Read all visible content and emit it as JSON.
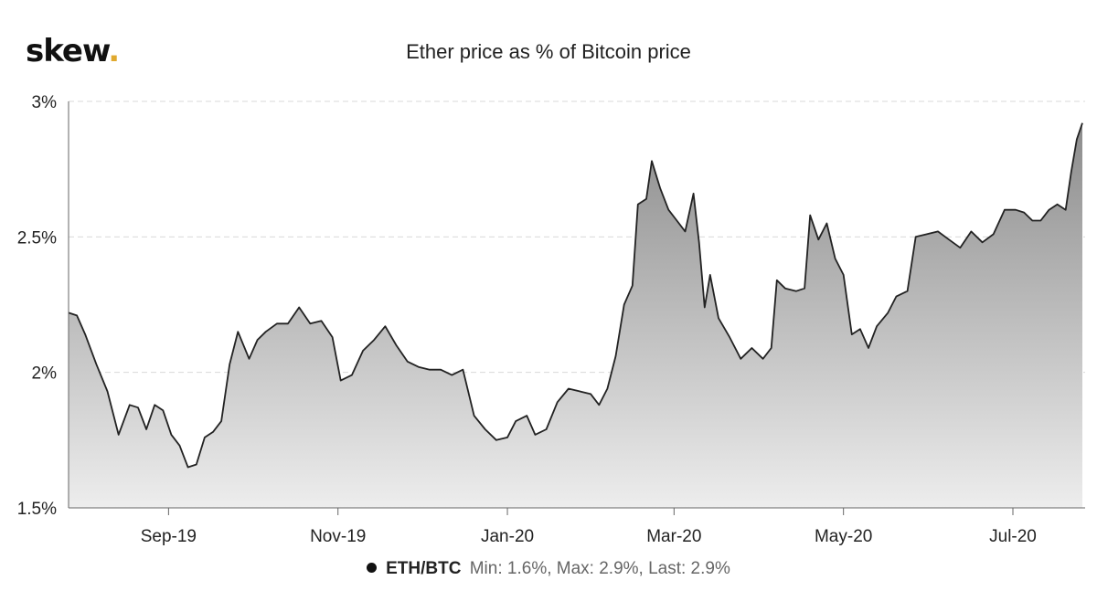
{
  "brand": {
    "name": "skew",
    "dot": "."
  },
  "chart_data": {
    "type": "area",
    "title": "Ether price as % of Bitcoin price",
    "xlabel": "",
    "ylabel": "",
    "ylim": [
      1.5,
      3.0
    ],
    "y_ticks": [
      {
        "value": 3.0,
        "label": "3%"
      },
      {
        "value": 2.5,
        "label": "2.5%"
      },
      {
        "value": 2.0,
        "label": "2%"
      },
      {
        "value": 1.5,
        "label": "1.5%"
      }
    ],
    "x_ticks": [
      {
        "date": "2019-09-01",
        "label": "Sep-19"
      },
      {
        "date": "2019-11-01",
        "label": "Nov-19"
      },
      {
        "date": "2020-01-01",
        "label": "Jan-20"
      },
      {
        "date": "2020-03-01",
        "label": "Mar-20"
      },
      {
        "date": "2020-05-01",
        "label": "May-20"
      },
      {
        "date": "2020-07-01",
        "label": "Jul-20"
      }
    ],
    "xlim": [
      "2019-07-27",
      "2020-07-27"
    ],
    "grid": "horizontal-dashed",
    "legend": "bottom-center",
    "series": [
      {
        "name": "ETH/BTC",
        "color": "#222222",
        "stats": "Min: 1.6%, Max: 2.9%, Last: 2.9%",
        "points": [
          [
            "2019-07-27",
            2.22
          ],
          [
            "2019-07-30",
            2.21
          ],
          [
            "2019-08-02",
            2.14
          ],
          [
            "2019-08-06",
            2.03
          ],
          [
            "2019-08-10",
            1.93
          ],
          [
            "2019-08-14",
            1.77
          ],
          [
            "2019-08-18",
            1.88
          ],
          [
            "2019-08-21",
            1.87
          ],
          [
            "2019-08-24",
            1.79
          ],
          [
            "2019-08-27",
            1.88
          ],
          [
            "2019-08-30",
            1.86
          ],
          [
            "2019-09-02",
            1.77
          ],
          [
            "2019-09-05",
            1.73
          ],
          [
            "2019-09-08",
            1.65
          ],
          [
            "2019-09-11",
            1.66
          ],
          [
            "2019-09-14",
            1.76
          ],
          [
            "2019-09-17",
            1.78
          ],
          [
            "2019-09-20",
            1.82
          ],
          [
            "2019-09-23",
            2.03
          ],
          [
            "2019-09-26",
            2.15
          ],
          [
            "2019-09-30",
            2.05
          ],
          [
            "2019-10-03",
            2.12
          ],
          [
            "2019-10-06",
            2.15
          ],
          [
            "2019-10-10",
            2.18
          ],
          [
            "2019-10-14",
            2.18
          ],
          [
            "2019-10-18",
            2.24
          ],
          [
            "2019-10-22",
            2.18
          ],
          [
            "2019-10-26",
            2.19
          ],
          [
            "2019-10-30",
            2.13
          ],
          [
            "2019-11-02",
            1.97
          ],
          [
            "2019-11-06",
            1.99
          ],
          [
            "2019-11-10",
            2.08
          ],
          [
            "2019-11-14",
            2.12
          ],
          [
            "2019-11-18",
            2.17
          ],
          [
            "2019-11-22",
            2.1
          ],
          [
            "2019-11-26",
            2.04
          ],
          [
            "2019-11-30",
            2.02
          ],
          [
            "2019-12-04",
            2.01
          ],
          [
            "2019-12-08",
            2.01
          ],
          [
            "2019-12-12",
            1.99
          ],
          [
            "2019-12-16",
            2.01
          ],
          [
            "2019-12-20",
            1.84
          ],
          [
            "2019-12-24",
            1.79
          ],
          [
            "2019-12-28",
            1.75
          ],
          [
            "2020-01-01",
            1.76
          ],
          [
            "2020-01-04",
            1.82
          ],
          [
            "2020-01-08",
            1.84
          ],
          [
            "2020-01-11",
            1.77
          ],
          [
            "2020-01-15",
            1.79
          ],
          [
            "2020-01-19",
            1.89
          ],
          [
            "2020-01-23",
            1.94
          ],
          [
            "2020-01-27",
            1.93
          ],
          [
            "2020-01-31",
            1.92
          ],
          [
            "2020-02-03",
            1.88
          ],
          [
            "2020-02-06",
            1.94
          ],
          [
            "2020-02-09",
            2.06
          ],
          [
            "2020-02-12",
            2.25
          ],
          [
            "2020-02-15",
            2.32
          ],
          [
            "2020-02-17",
            2.62
          ],
          [
            "2020-02-20",
            2.64
          ],
          [
            "2020-02-22",
            2.78
          ],
          [
            "2020-02-25",
            2.68
          ],
          [
            "2020-02-28",
            2.6
          ],
          [
            "2020-03-02",
            2.56
          ],
          [
            "2020-03-05",
            2.52
          ],
          [
            "2020-03-08",
            2.66
          ],
          [
            "2020-03-10",
            2.48
          ],
          [
            "2020-03-12",
            2.24
          ],
          [
            "2020-03-14",
            2.36
          ],
          [
            "2020-03-17",
            2.2
          ],
          [
            "2020-03-21",
            2.13
          ],
          [
            "2020-03-25",
            2.05
          ],
          [
            "2020-03-29",
            2.09
          ],
          [
            "2020-04-02",
            2.05
          ],
          [
            "2020-04-05",
            2.09
          ],
          [
            "2020-04-07",
            2.34
          ],
          [
            "2020-04-10",
            2.31
          ],
          [
            "2020-04-14",
            2.3
          ],
          [
            "2020-04-17",
            2.31
          ],
          [
            "2020-04-19",
            2.58
          ],
          [
            "2020-04-22",
            2.49
          ],
          [
            "2020-04-25",
            2.55
          ],
          [
            "2020-04-28",
            2.42
          ],
          [
            "2020-05-01",
            2.36
          ],
          [
            "2020-05-04",
            2.14
          ],
          [
            "2020-05-07",
            2.16
          ],
          [
            "2020-05-10",
            2.09
          ],
          [
            "2020-05-13",
            2.17
          ],
          [
            "2020-05-17",
            2.22
          ],
          [
            "2020-05-20",
            2.28
          ],
          [
            "2020-05-24",
            2.3
          ],
          [
            "2020-05-27",
            2.5
          ],
          [
            "2020-05-31",
            2.51
          ],
          [
            "2020-06-04",
            2.52
          ],
          [
            "2020-06-08",
            2.49
          ],
          [
            "2020-06-12",
            2.46
          ],
          [
            "2020-06-16",
            2.52
          ],
          [
            "2020-06-20",
            2.48
          ],
          [
            "2020-06-24",
            2.51
          ],
          [
            "2020-06-28",
            2.6
          ],
          [
            "2020-07-02",
            2.6
          ],
          [
            "2020-07-05",
            2.59
          ],
          [
            "2020-07-08",
            2.56
          ],
          [
            "2020-07-11",
            2.56
          ],
          [
            "2020-07-14",
            2.6
          ],
          [
            "2020-07-17",
            2.62
          ],
          [
            "2020-07-20",
            2.6
          ],
          [
            "2020-07-22",
            2.74
          ],
          [
            "2020-07-24",
            2.86
          ],
          [
            "2020-07-26",
            2.92
          ]
        ]
      }
    ]
  },
  "colors": {
    "accent_dot": "#e0a92e",
    "line": "#222222",
    "area_top": "#8c8c8c",
    "area_bottom": "#ededed"
  }
}
